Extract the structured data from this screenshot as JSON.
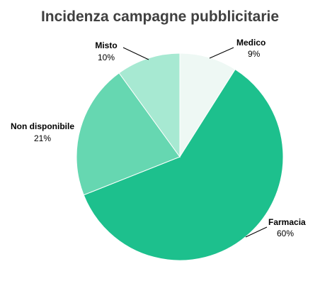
{
  "chart_data": {
    "type": "pie",
    "title": "Incidenza campagne pubblicitarie",
    "slices": [
      {
        "label": "Medico",
        "value": 9,
        "value_label": "9%",
        "color": "#eef8f4"
      },
      {
        "label": "Farmacia",
        "value": 60,
        "value_label": "60%",
        "color": "#1dc08d"
      },
      {
        "label": "Non disponibile",
        "value": 21,
        "value_label": "21%",
        "color": "#66d7b1"
      },
      {
        "label": "Misto",
        "value": 10,
        "value_label": "10%",
        "color": "#a7e9d2"
      }
    ],
    "start_angle_deg": 0,
    "direction": "clockwise"
  }
}
